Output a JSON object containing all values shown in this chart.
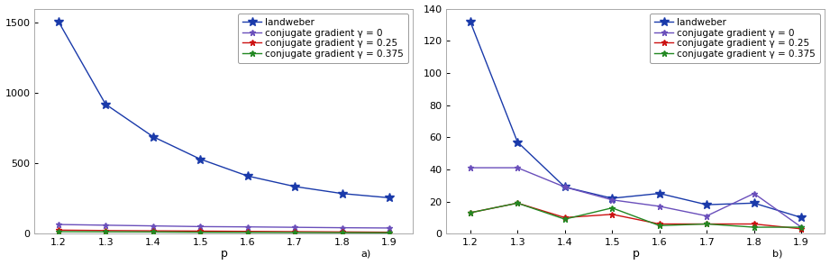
{
  "p": [
    1.2,
    1.3,
    1.4,
    1.5,
    1.6,
    1.7,
    1.8,
    1.9
  ],
  "left_landweber": [
    1510,
    920,
    690,
    530,
    410,
    335,
    285,
    255
  ],
  "left_cg0": [
    65,
    60,
    55,
    50,
    48,
    45,
    42,
    40
  ],
  "left_cg025": [
    25,
    22,
    20,
    18,
    16,
    14,
    12,
    10
  ],
  "left_cg0375": [
    14,
    13,
    12,
    10,
    9,
    8,
    7,
    6
  ],
  "right_landweber": [
    132,
    57,
    29,
    22,
    25,
    18,
    19,
    10
  ],
  "right_cg0": [
    41,
    41,
    29,
    21,
    17,
    11,
    25,
    4
  ],
  "right_cg025": [
    13,
    19,
    10,
    12,
    6,
    6,
    6,
    3
  ],
  "right_cg0375": [
    13,
    19,
    9,
    16,
    5,
    6,
    4,
    4
  ],
  "left_ylim": [
    0,
    1600
  ],
  "left_yticks": [
    0,
    500,
    1000,
    1500
  ],
  "right_ylim": [
    0,
    140
  ],
  "right_yticks": [
    0,
    20,
    40,
    60,
    80,
    100,
    120,
    140
  ],
  "color_landweber": "#1a3aaa",
  "color_cg0": "#6a4fbb",
  "color_cg025": "#cc1111",
  "color_cg0375": "#228822",
  "label_landweber": "landweber",
  "label_cg0": "conjugate gradient γ = 0",
  "label_cg025": "conjugate gradient γ = 0.25",
  "label_cg0375": "conjugate gradient γ = 0.375",
  "xlabel": "p",
  "left_sublabel": "a)",
  "right_sublabel": "b)",
  "bg_color": "#ffffff",
  "fig_bg": "#ffffff",
  "axes_edge_color": "#aaaaaa"
}
